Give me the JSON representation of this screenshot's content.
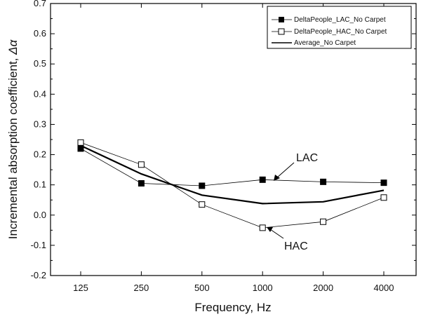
{
  "chart_data": {
    "type": "line",
    "title": "",
    "xlabel": "Frequency, Hz",
    "ylabel_text": "Incremental absorption coefficient, ",
    "ylabel_symbol": "Δα",
    "categories": [
      "125",
      "250",
      "500",
      "1000",
      "2000",
      "4000"
    ],
    "ylim": [
      -0.2,
      0.7
    ],
    "yticks": [
      -0.2,
      -0.1,
      0.0,
      0.1,
      0.2,
      0.3,
      0.4,
      0.5,
      0.6,
      0.7
    ],
    "ytick_labels": [
      "-0.2",
      "-0.1",
      "0.0",
      "0.1",
      "0.2",
      "0.3",
      "0.4",
      "0.5",
      "0.6",
      "0.7"
    ],
    "legend_position": "top-right",
    "grid": false,
    "series": [
      {
        "name": "DeltaPeople_LAC_No Carpet",
        "marker": "filled-square",
        "line": "thin",
        "values": [
          0.22,
          0.105,
          0.097,
          0.117,
          0.11,
          0.107
        ]
      },
      {
        "name": "DeltaPeople_HAC_No Carpet",
        "marker": "open-square",
        "line": "thin",
        "values": [
          0.24,
          0.167,
          0.035,
          -0.042,
          -0.022,
          0.058
        ]
      },
      {
        "name": "Average_No Carpet",
        "marker": "none",
        "line": "thick",
        "values": [
          0.23,
          0.136,
          0.066,
          0.038,
          0.044,
          0.082
        ]
      }
    ],
    "annotations": [
      {
        "text": "LAC",
        "points_to": {
          "category": "1000",
          "series": "DeltaPeople_LAC_No Carpet"
        }
      },
      {
        "text": "HAC",
        "points_to": {
          "category": "1000",
          "series": "DeltaPeople_HAC_No Carpet"
        }
      }
    ]
  }
}
